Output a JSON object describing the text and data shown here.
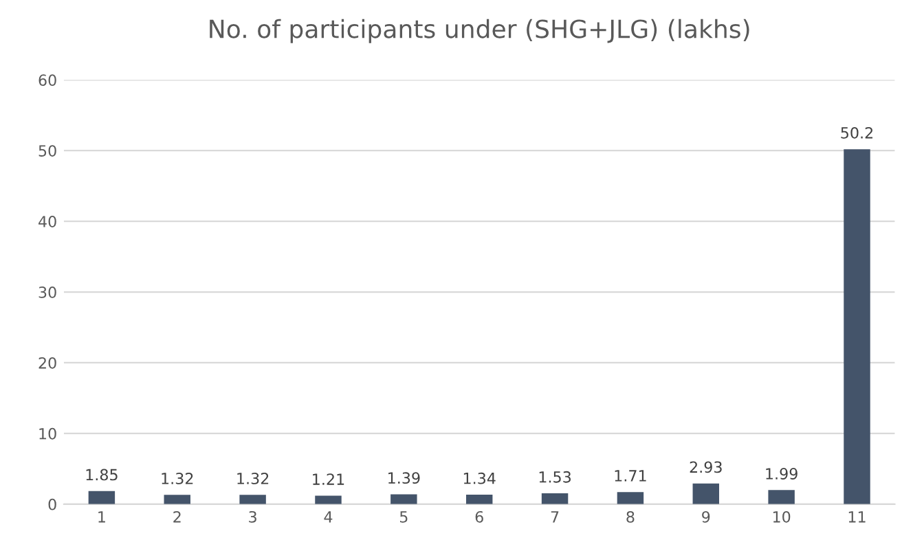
{
  "chart_data": {
    "type": "bar",
    "title": "No. of participants under (SHG+JLG) (lakhs)",
    "categories": [
      "1",
      "2",
      "3",
      "4",
      "5",
      "6",
      "7",
      "8",
      "9",
      "10",
      "11"
    ],
    "values": [
      1.85,
      1.32,
      1.32,
      1.21,
      1.39,
      1.34,
      1.53,
      1.71,
      2.93,
      1.99,
      50.2
    ],
    "color": "#44546a",
    "ylim": [
      0,
      60
    ],
    "yticks": [
      0,
      10,
      20,
      30,
      40,
      50,
      60
    ],
    "grid": "y",
    "data_labels": true
  }
}
